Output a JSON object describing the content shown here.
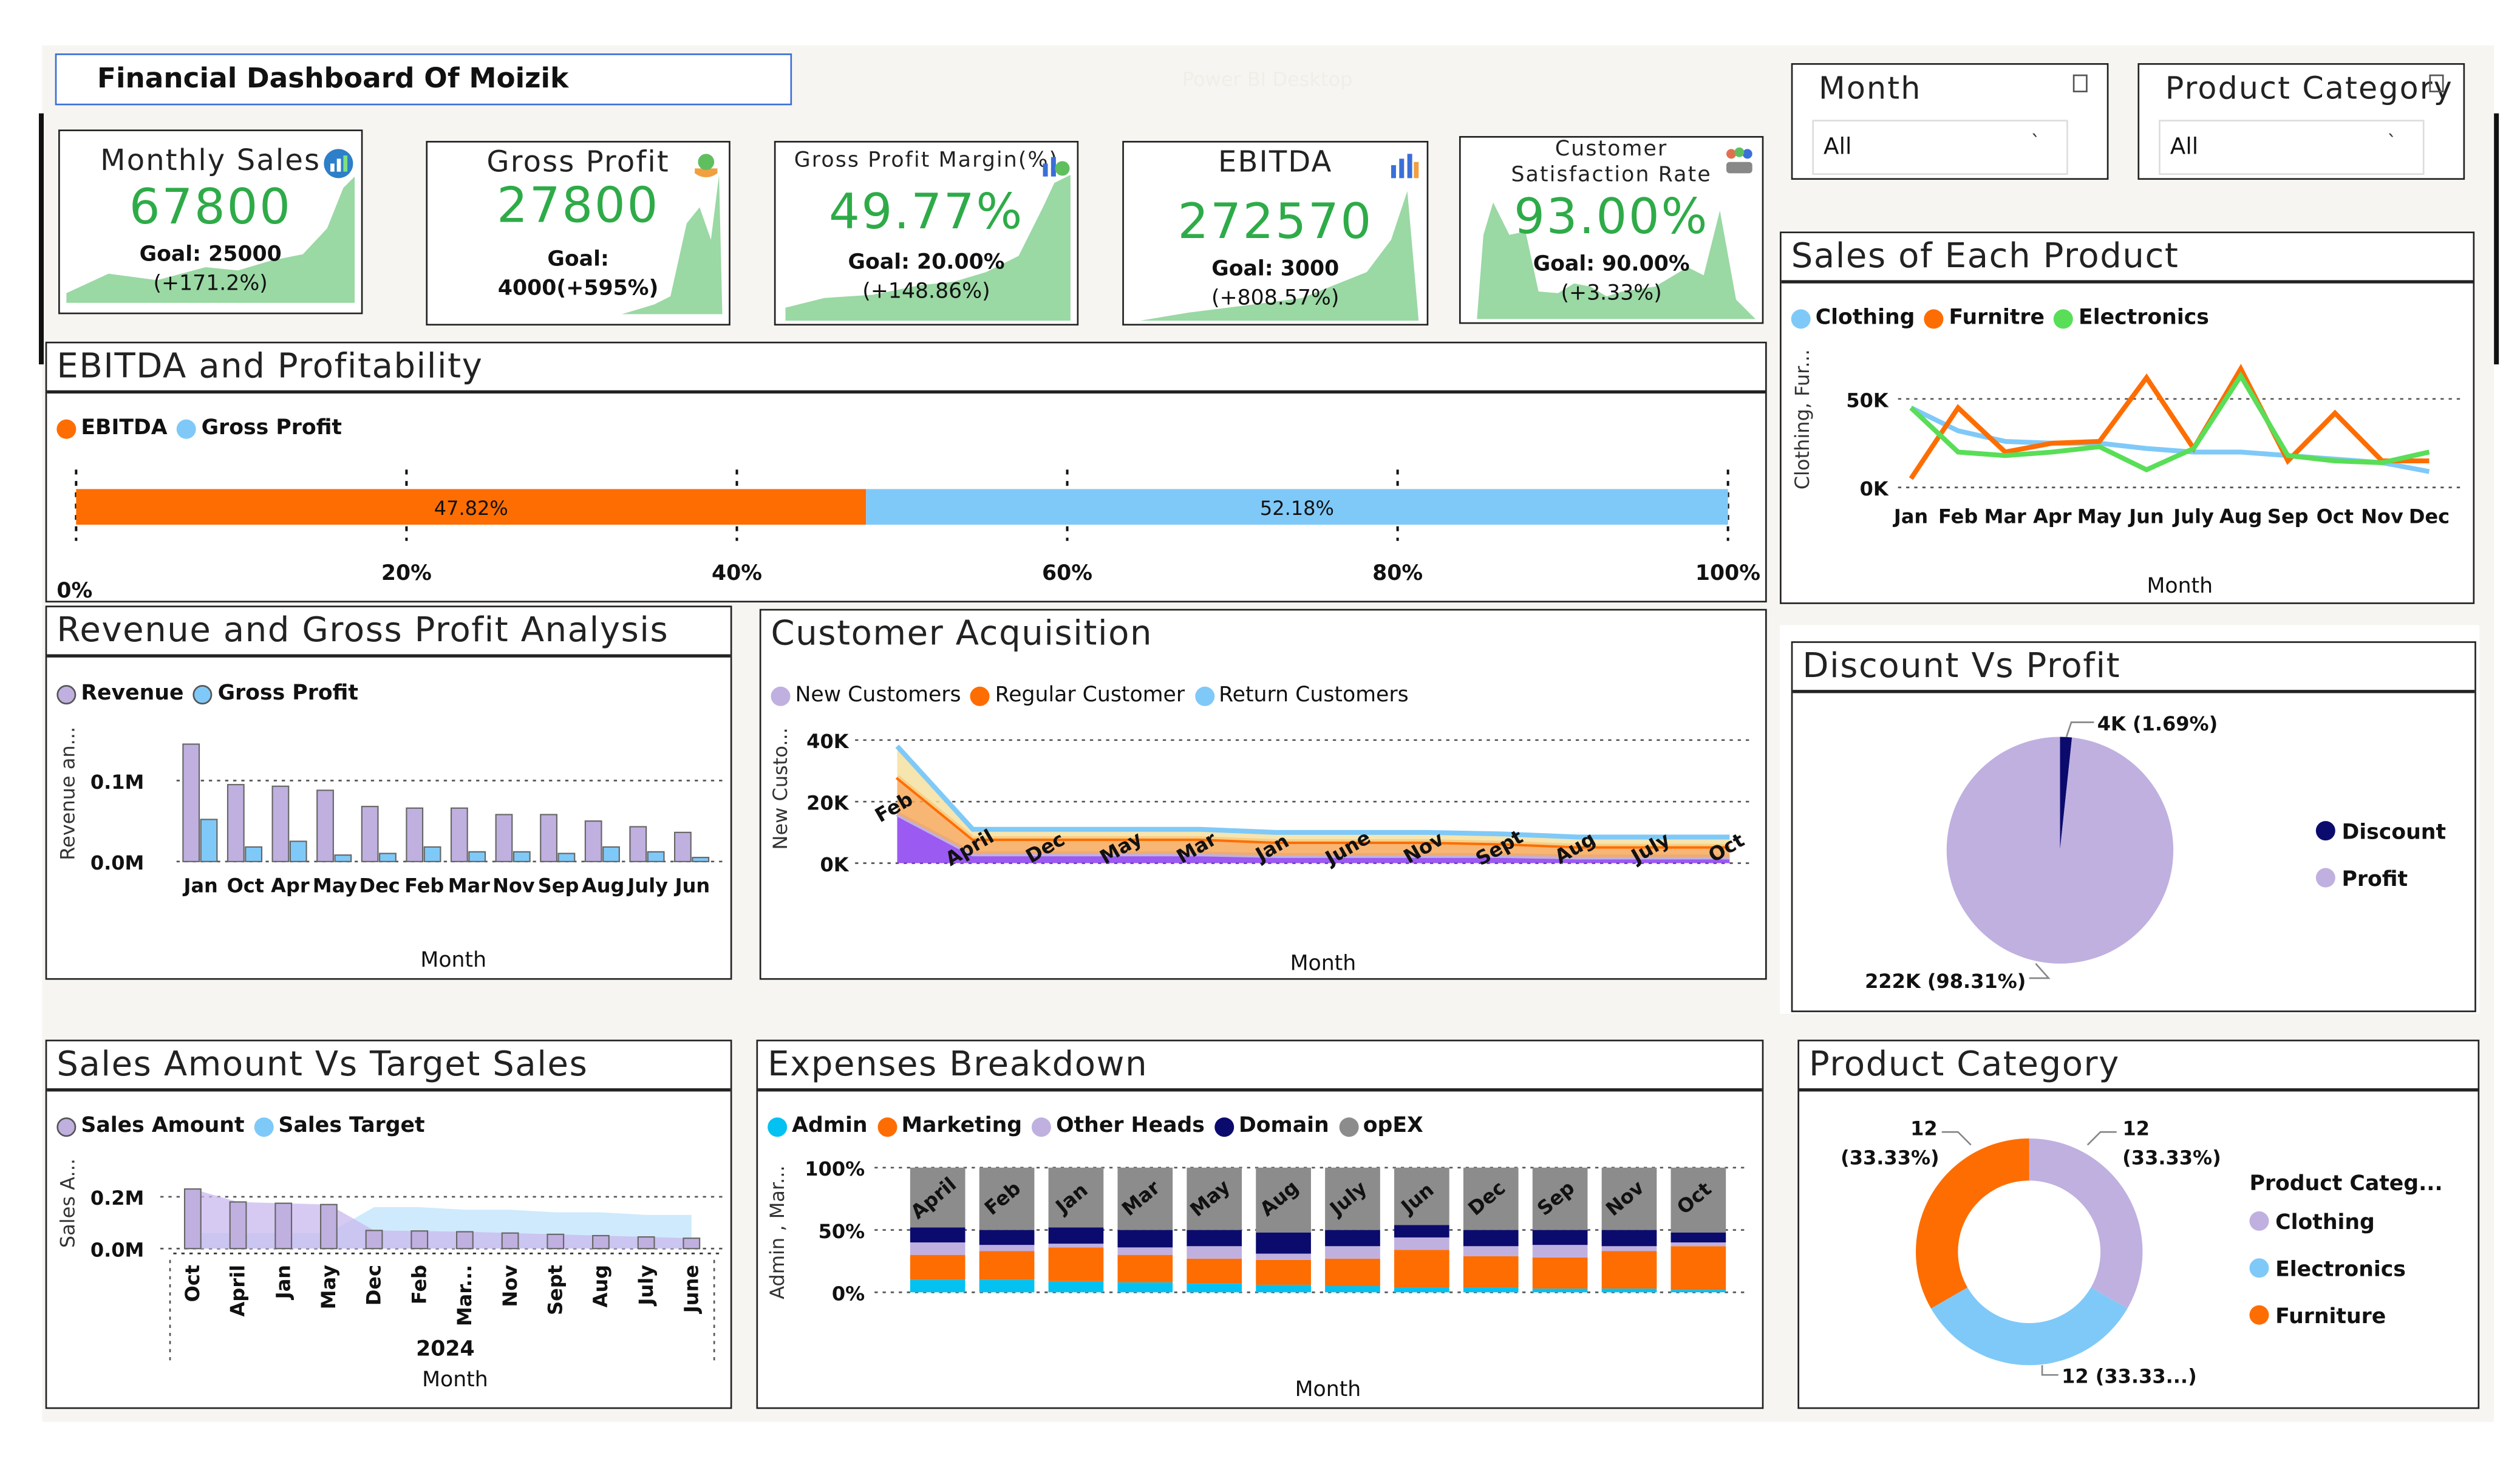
{
  "header": {
    "title": "Financial Dashboard Of Moizik",
    "watermark": "Power BI Desktop"
  },
  "kpis": [
    {
      "title": "Monthly Sales",
      "value": "67800",
      "goal": "Goal: 25000",
      "change": "(+171.2%)",
      "icon": "chart-growth-icon"
    },
    {
      "title": "Gross Profit",
      "value": "27800",
      "goal": "Goal:",
      "change": "4000(+595%)",
      "icon": "money-hand-icon"
    },
    {
      "title": "Gross Profit Margin(%)",
      "value": "49.77%",
      "goal": "Goal: 20.00%",
      "change": "(+148.86%)",
      "icon": "money-chart-icon"
    },
    {
      "title": "EBITDA",
      "value": "272570",
      "goal": "Goal: 3000",
      "change": "(+808.57%)",
      "icon": "bar-chart-icon"
    },
    {
      "title": "Customer Satisfaction Rate",
      "value": "93.00%",
      "goal": "Goal: 90.00%",
      "change": "(+3.33%)",
      "icon": "customers-icon"
    }
  ],
  "slicers": [
    {
      "label": "Month",
      "value": "All"
    },
    {
      "label": "Product Category",
      "value": "All"
    }
  ],
  "colors": {
    "orange": "#fe6d01",
    "lightblue": "#7fc9f8",
    "green": "#58de57",
    "purple": "#c0b0e0",
    "navy": "#0b0b6e",
    "cyan": "#03c2f2",
    "grey": "#8c8c8c",
    "kpi_green": "#2eab48"
  },
  "ebitda_panel": {
    "title": "EBITDA and Profitability",
    "chart_data": {
      "type": "bar",
      "orientation": "horizontal-100%-stacked",
      "series": [
        {
          "name": "EBITDA",
          "value": 47.82,
          "label": "47.82%"
        },
        {
          "name": "Gross Profit",
          "value": 52.18,
          "label": "52.18%"
        }
      ],
      "xticks": [
        "0%",
        "20%",
        "40%",
        "60%",
        "80%",
        "100%"
      ],
      "xlim": [
        0,
        100
      ]
    }
  },
  "sales_product": {
    "title": "Sales of Each Product",
    "chart_data": {
      "type": "line",
      "categories": [
        "Jan",
        "Feb",
        "Mar",
        "Apr",
        "May",
        "Jun",
        "July",
        "Aug",
        "Sep",
        "Oct",
        "Nov",
        "Dec"
      ],
      "series": [
        {
          "name": "Clothing",
          "values": [
            45000,
            32000,
            26000,
            25000,
            25000,
            22000,
            20000,
            20000,
            18000,
            16000,
            14000,
            9000
          ]
        },
        {
          "name": "Furnitre",
          "values": [
            5000,
            45000,
            20000,
            25000,
            26000,
            62000,
            22000,
            67000,
            15000,
            42000,
            15000,
            15000
          ]
        },
        {
          "name": "Electronics",
          "values": [
            45000,
            20000,
            18000,
            20000,
            23000,
            10000,
            22000,
            63000,
            18000,
            15000,
            14000,
            20000
          ]
        }
      ],
      "ylabel": "Clothing, Fur...",
      "xlabel": "Month",
      "yticks": [
        "0K",
        "50K"
      ],
      "ylim": [
        0,
        75000
      ]
    }
  },
  "revenue_panel": {
    "title": "Revenue and Gross Profit Analysis",
    "chart_data": {
      "type": "bar",
      "categories": [
        "Jan",
        "Oct",
        "Apr",
        "May",
        "Dec",
        "Feb",
        "Mar",
        "Nov",
        "Sep",
        "Aug",
        "July",
        "Jun"
      ],
      "series": [
        {
          "name": "Revenue",
          "values": [
            145000,
            95000,
            93000,
            88000,
            68000,
            66000,
            66000,
            58000,
            58000,
            50000,
            43000,
            36000
          ]
        },
        {
          "name": "Gross Profit",
          "values": [
            52000,
            18000,
            25000,
            8000,
            10000,
            18000,
            12000,
            12000,
            10000,
            18000,
            12000,
            5000
          ]
        }
      ],
      "ylabel": "Revenue an...",
      "xlabel": "Month",
      "yticks": [
        "0.0M",
        "0.1M"
      ],
      "ylim": [
        0,
        160000
      ]
    }
  },
  "customer_panel": {
    "title": "Customer Acquisition",
    "chart_data": {
      "type": "area",
      "categories": [
        "Feb",
        "April",
        "Dec",
        "May",
        "Mar",
        "Jan",
        "June",
        "Nov",
        "Sept",
        "Aug",
        "July",
        "Oct"
      ],
      "series": [
        {
          "name": "New Customers",
          "values": [
            16000,
            3000,
            3000,
            3000,
            3000,
            2500,
            2500,
            2500,
            2500,
            2000,
            2000,
            2000
          ]
        },
        {
          "name": "Regular Customer",
          "values": [
            12000,
            5000,
            5000,
            5000,
            5000,
            4500,
            4500,
            4500,
            4000,
            3500,
            3500,
            3500
          ]
        },
        {
          "name": "Return Customers",
          "values": [
            10000,
            3000,
            3000,
            3000,
            3000,
            3000,
            3000,
            3000,
            3000,
            3000,
            3000,
            3000
          ]
        }
      ],
      "ylabel": "New Custo...",
      "xlabel": "Month",
      "yticks": [
        "0K",
        "20K",
        "40K"
      ],
      "ylim": [
        0,
        40000
      ]
    }
  },
  "discount_panel": {
    "title": "Discount Vs Profit",
    "chart_data": {
      "type": "pie",
      "slices": [
        {
          "name": "Discount",
          "value": 1.69,
          "label": "4K (1.69%)"
        },
        {
          "name": "Profit",
          "value": 98.31,
          "label": "222K (98.31%)"
        }
      ]
    }
  },
  "sales_target_panel": {
    "title": "Sales Amount Vs Target Sales",
    "chart_data": {
      "type": "area",
      "categories": [
        "Oct",
        "April",
        "Jan",
        "May",
        "Dec",
        "Feb",
        "Mar...",
        "Nov",
        "Sept",
        "Aug",
        "July",
        "June"
      ],
      "series": [
        {
          "name": "Sales Amount",
          "values": [
            230000,
            180000,
            175000,
            170000,
            70000,
            68000,
            65000,
            60000,
            55000,
            50000,
            45000,
            40000
          ]
        },
        {
          "name": "Sales Target",
          "values": [
            60000,
            60000,
            60000,
            60000,
            160000,
            160000,
            150000,
            150000,
            140000,
            140000,
            130000,
            130000
          ]
        }
      ],
      "ylabel": "Sales A...",
      "xlabel": "Month",
      "group_label": "2024",
      "yticks": [
        "0.0M",
        "0.2M"
      ],
      "ylim": [
        0,
        300000
      ]
    }
  },
  "expenses_panel": {
    "title": "Expenses Breakdown",
    "chart_data": {
      "type": "bar",
      "orientation": "vertical-100%-stacked",
      "categories": [
        "April",
        "Feb",
        "Jan",
        "Mar",
        "May",
        "Aug",
        "July",
        "Jun",
        "Dec",
        "Sep",
        "Nov",
        "Oct"
      ],
      "series": [
        {
          "name": "Admin",
          "values": [
            10,
            10,
            9,
            8,
            7,
            6,
            5,
            4,
            4,
            3,
            3,
            2
          ]
        },
        {
          "name": "Marketing",
          "values": [
            20,
            23,
            27,
            22,
            20,
            20,
            22,
            30,
            25,
            25,
            30,
            35
          ]
        },
        {
          "name": "Other Heads",
          "values": [
            10,
            5,
            3,
            6,
            10,
            5,
            10,
            10,
            8,
            10,
            4,
            3
          ]
        },
        {
          "name": "Domain",
          "values": [
            12,
            12,
            13,
            14,
            13,
            17,
            13,
            10,
            13,
            12,
            13,
            8
          ]
        },
        {
          "name": "opEX",
          "values": [
            48,
            50,
            48,
            50,
            50,
            52,
            50,
            46,
            50,
            50,
            50,
            52
          ]
        }
      ],
      "ylabel": "Admin , Mar...",
      "xlabel": "Month",
      "yticks": [
        "0%",
        "50%",
        "100%"
      ],
      "ylim": [
        0,
        100
      ]
    }
  },
  "category_panel": {
    "title": "Product Category",
    "chart_data": {
      "type": "pie",
      "variant": "donut",
      "legend_title": "Product Categ...",
      "slices": [
        {
          "name": "Clothing",
          "value": 33.33,
          "label": "12",
          "label2": "(33.33%)"
        },
        {
          "name": "Electronics",
          "value": 33.33,
          "label": "12 (33.33...)",
          "label2": ""
        },
        {
          "name": "Furniture",
          "value": 33.33,
          "label": "12",
          "label2": "(33.33%)"
        }
      ]
    }
  }
}
